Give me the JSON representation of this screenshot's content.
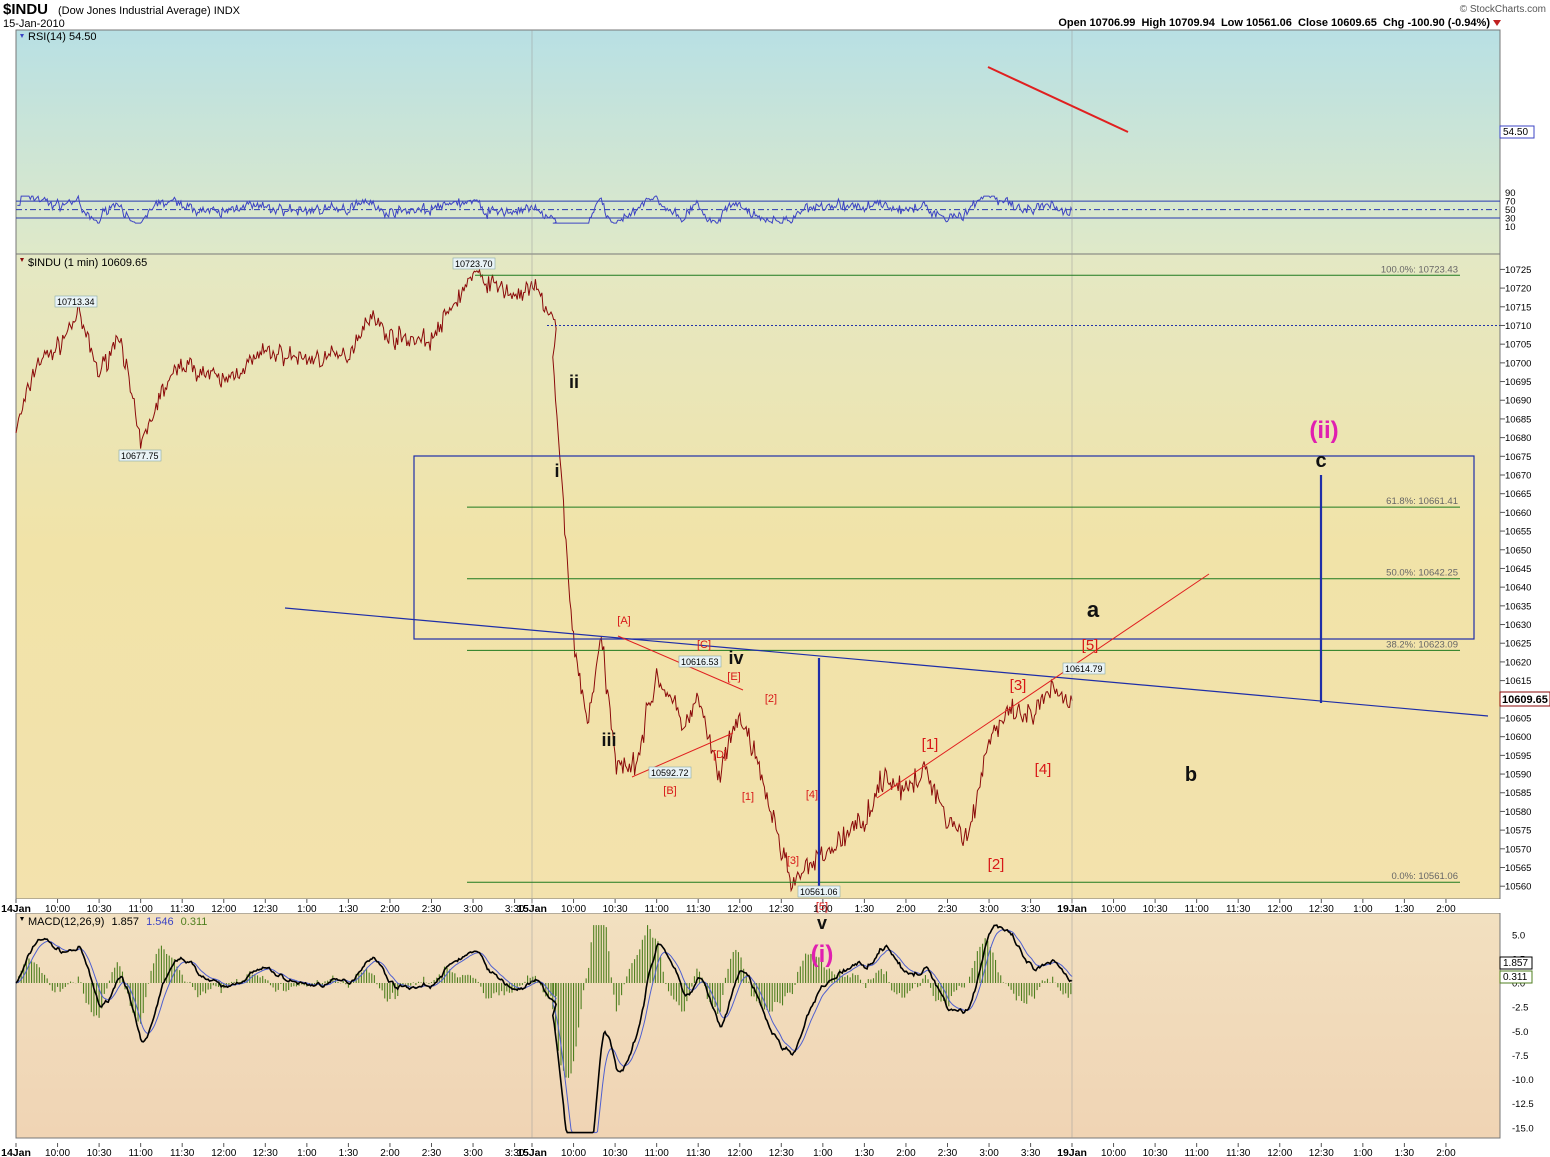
{
  "header": {
    "symbol": "$INDU",
    "name": "(Dow Jones Industrial Average) INDX",
    "date": "15-Jan-2010",
    "brand": "© StockCharts.com",
    "ohlc": "Open 10706.99  High 10709.94  Low 10561.06  Close 10609.65  Chg -100.90 (-0.94%)"
  },
  "rsi": {
    "label": "RSI(14) 54.50",
    "current": "54.50",
    "ticks": [
      90,
      70,
      50,
      30,
      10
    ],
    "levels": [
      70,
      50,
      30
    ],
    "ylim": [
      0,
      100
    ],
    "color": "#3d44c4"
  },
  "price": {
    "label": "$INDU (1 min) 10609.65",
    "current": "10609.65",
    "ylim": [
      10557,
      10727
    ],
    "ticks": [
      10725,
      10720,
      10715,
      10710,
      10705,
      10700,
      10695,
      10690,
      10685,
      10680,
      10675,
      10670,
      10665,
      10660,
      10655,
      10650,
      10645,
      10640,
      10635,
      10630,
      10625,
      10620,
      10615,
      10610,
      10605,
      10600,
      10595,
      10590,
      10585,
      10580,
      10575,
      10570,
      10565,
      10560
    ],
    "fib": [
      {
        "label": "100.0%: 10723.43",
        "value": 10723.43
      },
      {
        "label": "61.8%: 10661.41",
        "value": 10661.41
      },
      {
        "label": "50.0%: 10642.25",
        "value": 10642.25
      },
      {
        "label": "38.2%: 10623.09",
        "value": 10623.09
      },
      {
        "label": "0.0%: 10561.06",
        "value": 10561.06
      }
    ],
    "price_labels": [
      "10723.70",
      "10713.34",
      "10677.75",
      "10616.53",
      "10592.72",
      "10561.06",
      "10614.79"
    ],
    "black_waves": [
      "ii",
      "i",
      "iii",
      "iv",
      "v",
      "a",
      "b",
      "c"
    ],
    "red_waves": [
      "[A]",
      "[B]",
      "[C]",
      "[D]",
      "[E]",
      "[1]",
      "[2]",
      "[3]",
      "[4]",
      "[5]",
      "[1]",
      "[2]",
      "[3]",
      "[4]",
      "[5]"
    ],
    "magenta_waves": [
      "(i)",
      "(ii)"
    ]
  },
  "time_axis": [
    "14Jan",
    "10:00",
    "10:30",
    "11:00",
    "11:30",
    "12:00",
    "12:30",
    "1:00",
    "1:30",
    "2:00",
    "2:30",
    "3:00",
    "3:30",
    "15Jan",
    "10:00",
    "10:30",
    "11:00",
    "11:30",
    "12:00",
    "12:30",
    "1:00",
    "1:30",
    "2:00",
    "2:30",
    "3:00",
    "3:30",
    "19Jan",
    "10:00",
    "10:30",
    "11:00",
    "11:30",
    "12:00",
    "12:30",
    "1:00",
    "1:30",
    "2:00"
  ],
  "macd": {
    "label": "MACD(12,26,9)",
    "v1": "1.857",
    "v2": "1.546",
    "v3": "0.311",
    "ticks": [
      "5.0",
      "2.5",
      "0.0",
      "-2.5",
      "-5.0",
      "-7.5",
      "-10.0",
      "-12.5",
      "-15.0"
    ],
    "ylim": [
      -16,
      6.5
    ]
  },
  "colors": {
    "price_line": "#8b0a0a",
    "fib_line": "#1f7a1f",
    "blue_line": "#1f2ea8",
    "red_line": "#e02020",
    "magenta": "#e020b0",
    "macd_hist": "#4f7f1f"
  },
  "chart_data": {
    "type": "line",
    "title": "$INDU (Dow Jones Industrial Average) INDX",
    "series": [
      {
        "name": "$INDU (1 min)",
        "points": [
          [
            "14Jan 9:30",
            10682
          ],
          [
            "14Jan 9:45",
            10700
          ],
          [
            "14Jan 10:00",
            10704
          ],
          [
            "14Jan 10:15",
            10713.34
          ],
          [
            "14Jan 10:30",
            10697
          ],
          [
            "14Jan 10:45",
            10708
          ],
          [
            "14Jan 11:00",
            10677.75
          ],
          [
            "14Jan 11:15",
            10692
          ],
          [
            "14Jan 11:30",
            10700
          ],
          [
            "14Jan 12:00",
            10695
          ],
          [
            "14Jan 12:30",
            10703
          ],
          [
            "14Jan 1:00",
            10701
          ],
          [
            "14Jan 1:30",
            10702
          ],
          [
            "14Jan 1:45",
            10713
          ],
          [
            "14Jan 2:00",
            10707
          ],
          [
            "14Jan 2:30",
            10706
          ],
          [
            "14Jan 2:45",
            10715
          ],
          [
            "14Jan 3:00",
            10723.7
          ],
          [
            "14Jan 3:30",
            10718
          ],
          [
            "14Jan 3:45",
            10720
          ],
          [
            "14Jan 4:00",
            10710
          ],
          [
            "15Jan 9:45",
            10700
          ],
          [
            "15Jan 9:50",
            10675
          ],
          [
            "15Jan 10:00",
            10625
          ],
          [
            "15Jan 10:10",
            10604
          ],
          [
            "15Jan 10:20",
            10626
          ],
          [
            "15Jan 10:30",
            10594
          ],
          [
            "15Jan 10:45",
            10592.72
          ],
          [
            "15Jan 11:00",
            10616.53
          ],
          [
            "15Jan 11:20",
            10603
          ],
          [
            "15Jan 11:30",
            10610
          ],
          [
            "15Jan 11:45",
            10589
          ],
          [
            "15Jan 12:00",
            10606
          ],
          [
            "15Jan 12:15",
            10590
          ],
          [
            "15Jan 12:30",
            10570
          ],
          [
            "15Jan 12:38",
            10561.06
          ],
          [
            "15Jan 1:00",
            10568
          ],
          [
            "15Jan 1:30",
            10578
          ],
          [
            "15Jan 1:45",
            10590
          ],
          [
            "15Jan 2:00",
            10585
          ],
          [
            "15Jan 2:15",
            10591
          ],
          [
            "15Jan 2:30",
            10578
          ],
          [
            "15Jan 2:45",
            10573
          ],
          [
            "15Jan 3:00",
            10600
          ],
          [
            "15Jan 3:15",
            10606
          ],
          [
            "15Jan 3:30",
            10605
          ],
          [
            "15Jan 3:45",
            10612
          ],
          [
            "15Jan 4:00",
            10609.65
          ]
        ]
      }
    ],
    "ylim": [
      10557,
      10727
    ],
    "xlabel": "",
    "ylabel": ""
  }
}
